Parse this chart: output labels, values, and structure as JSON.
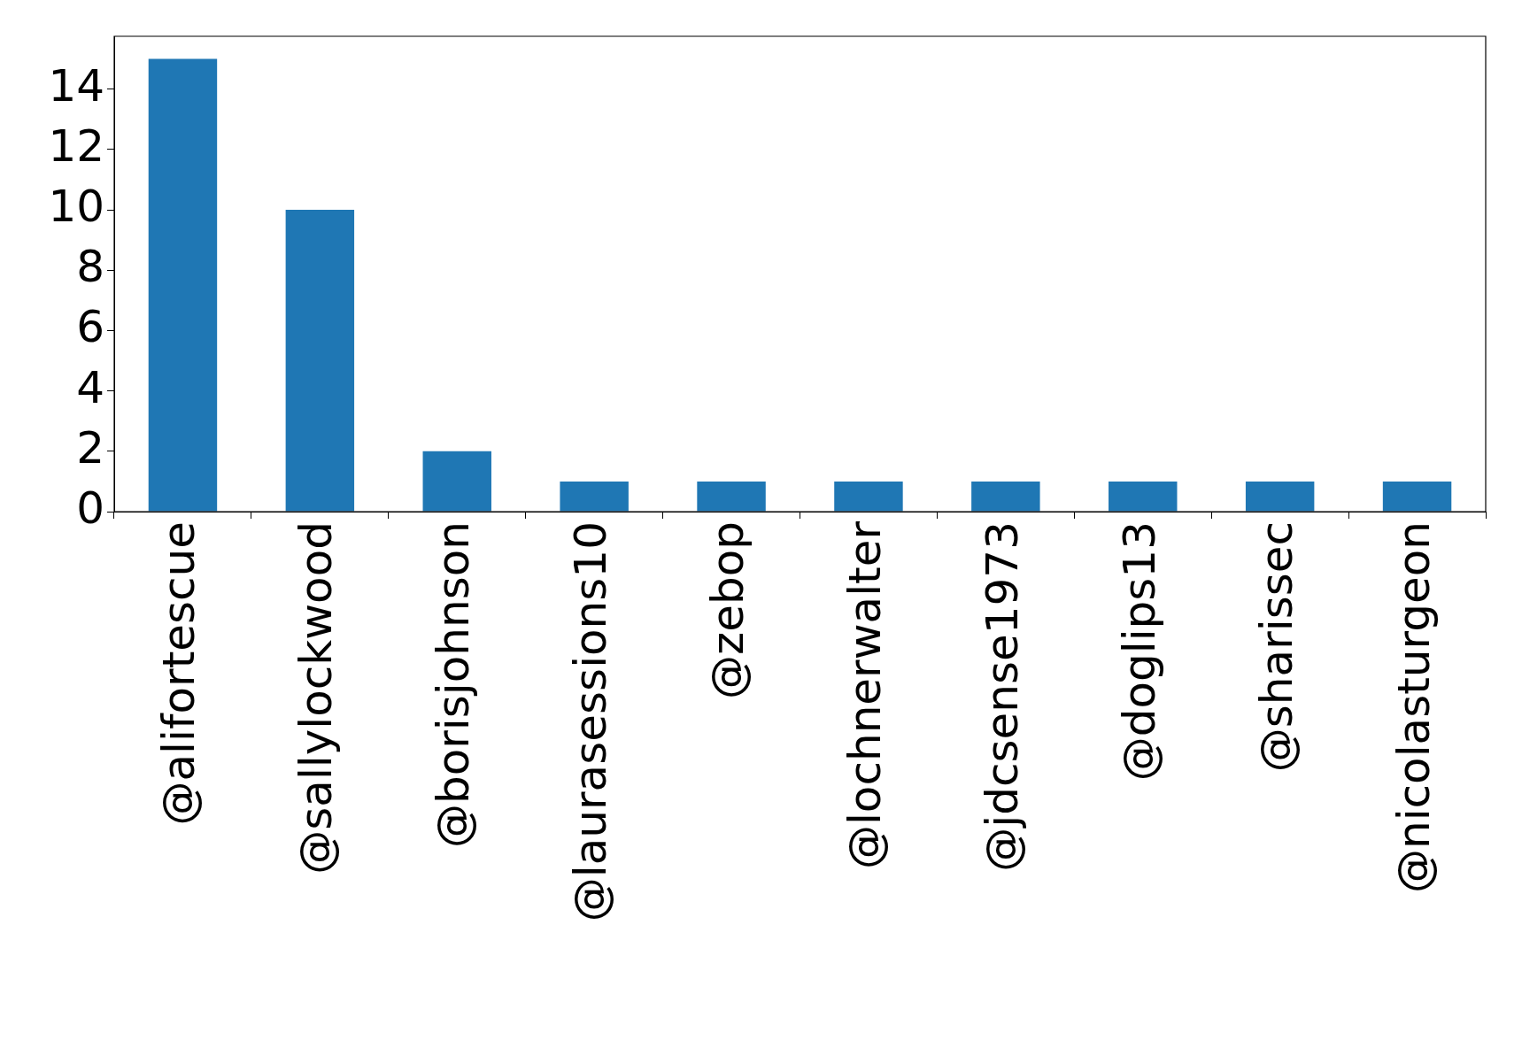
{
  "chart_data": {
    "type": "bar",
    "categories": [
      "@alifortescue",
      "@sallylockwood",
      "@borisjohnson",
      "@laurasessions10",
      "@zebop",
      "@lochnerwalter",
      "@jdcsense1973",
      "@doglips13",
      "@sharissec",
      "@nicolasturgeon"
    ],
    "values": [
      15,
      10,
      2,
      1,
      1,
      1,
      1,
      1,
      1,
      1
    ],
    "color": "#1f77b4",
    "ylim": [
      0,
      15.75
    ],
    "yticks": [
      0,
      2,
      4,
      6,
      8,
      10,
      12,
      14
    ],
    "grid": false
  }
}
